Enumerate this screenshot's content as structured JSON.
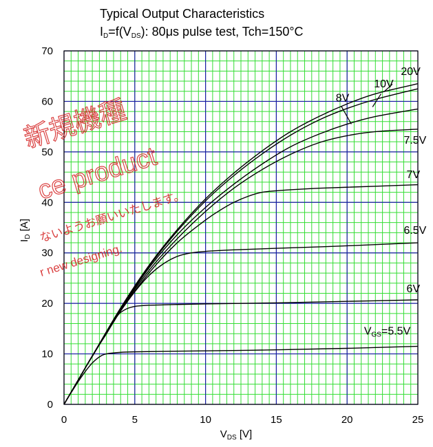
{
  "chart_data": {
    "type": "line",
    "title": "Typical Output Characteristics",
    "subtitle": {
      "prefix": "I",
      "prefix_sub": "D",
      "mid": "=f(V",
      "mid_sub": "DS",
      "rest": "): 80μs pulse test, Tch=150°C"
    },
    "xlabel": {
      "main": "V",
      "sub": "DS",
      "unit": " [V]"
    },
    "ylabel": {
      "main": "I",
      "sub": "D",
      "unit": " [A]"
    },
    "xlim": [
      0,
      25
    ],
    "ylim": [
      0,
      70
    ],
    "xticks": [
      "0",
      "5",
      "10",
      "15",
      "20",
      "25"
    ],
    "yticks": [
      "0",
      "10",
      "20",
      "30",
      "40",
      "50",
      "60",
      "70"
    ],
    "grid": {
      "minor": true,
      "major": true,
      "minor_color": "#33dd33",
      "major_color": "#1a1aa6"
    },
    "series": [
      {
        "name": "VGS=5.5V",
        "label_parts": {
          "main": "V",
          "sub": "GS",
          "rest": "=5.5V"
        },
        "x": [
          0,
          0.5,
          1,
          1.5,
          2,
          2.5,
          3,
          4,
          5,
          7,
          10,
          15,
          20,
          25
        ],
        "y": [
          0,
          2.3,
          4.5,
          6.5,
          8.2,
          9.4,
          10.0,
          10.3,
          10.4,
          10.5,
          10.6,
          10.8,
          11.1,
          11.5
        ]
      },
      {
        "name": "6V",
        "x": [
          0,
          0.5,
          1,
          1.5,
          2,
          2.5,
          3,
          3.5,
          4,
          5,
          7,
          10,
          15,
          20,
          25
        ],
        "y": [
          0,
          2.4,
          4.8,
          7.2,
          9.5,
          11.8,
          14.0,
          16.3,
          18.2,
          19.4,
          19.7,
          19.9,
          20.1,
          20.4,
          20.7
        ]
      },
      {
        "name": "6.5V",
        "x": [
          0,
          1,
          2,
          3,
          4,
          5,
          6,
          7,
          8,
          9,
          10,
          12,
          15,
          20,
          25
        ],
        "y": [
          0,
          4.8,
          9.6,
          14.2,
          18.5,
          22.3,
          25.5,
          27.8,
          29.3,
          30.0,
          30.3,
          30.6,
          30.9,
          31.4,
          32.0
        ]
      },
      {
        "name": "7V",
        "x": [
          0,
          1,
          2,
          4,
          6,
          8,
          10,
          11,
          12,
          13,
          14,
          15,
          16,
          18,
          20,
          25
        ],
        "y": [
          0,
          4.8,
          9.6,
          18.5,
          26.0,
          32.0,
          36.5,
          38.4,
          40.0,
          41.2,
          42.0,
          42.3,
          42.5,
          42.8,
          43.0,
          43.5
        ]
      },
      {
        "name": "7.5V",
        "x": [
          0,
          2,
          4,
          6,
          8,
          10,
          12,
          14,
          16,
          18,
          20,
          22,
          25
        ],
        "y": [
          0,
          9.6,
          18.7,
          26.5,
          32.8,
          38.2,
          42.8,
          46.5,
          49.5,
          51.8,
          53.2,
          54.0,
          54.5
        ]
      },
      {
        "name": "8V",
        "x": [
          0,
          2,
          4,
          6,
          8,
          10,
          12,
          14,
          16,
          18,
          20,
          22,
          25
        ],
        "y": [
          0,
          9.6,
          18.8,
          27.0,
          33.6,
          39.0,
          43.6,
          47.6,
          51.0,
          53.5,
          55.5,
          57.0,
          58.5
        ]
      },
      {
        "name": "10V",
        "x": [
          0,
          2,
          4,
          6,
          8,
          10,
          12,
          14,
          16,
          18,
          20,
          22,
          25
        ],
        "y": [
          0,
          9.6,
          19.0,
          27.3,
          34.3,
          40.3,
          45.3,
          49.6,
          53.3,
          56.3,
          58.6,
          60.4,
          62.5
        ]
      },
      {
        "name": "20V",
        "x": [
          0,
          2,
          4,
          6,
          8,
          10,
          12,
          14,
          16,
          18,
          20,
          22,
          25
        ],
        "y": [
          0,
          9.6,
          19.1,
          27.5,
          34.6,
          40.7,
          45.8,
          50.2,
          54.0,
          57.0,
          59.5,
          61.5,
          63.5
        ]
      }
    ],
    "curve_labels": [
      {
        "series": "20V",
        "text": "20V",
        "x": 23.8,
        "y": 65.2
      },
      {
        "series": "10V",
        "text": "10V",
        "x": 21.9,
        "y": 62.8
      },
      {
        "series": "8V",
        "text": "8V",
        "x": 19.2,
        "y": 60.0
      },
      {
        "series": "7.5V",
        "text": "7.5V",
        "x": 24.0,
        "y": 51.6
      },
      {
        "series": "7V",
        "text": "7V",
        "x": 24.2,
        "y": 44.8
      },
      {
        "series": "6.5V",
        "text": "6.5V",
        "x": 24.0,
        "y": 33.8
      },
      {
        "series": "6V",
        "text": "6V",
        "x": 24.2,
        "y": 22.2
      },
      {
        "series": "VGS=5.5V",
        "text": "VGS=5.5V",
        "x": 21.2,
        "y": 13.8
      }
    ],
    "leaders": [
      {
        "from": [
          22.4,
          61.5
        ],
        "to": [
          21.8,
          58.9
        ]
      },
      {
        "from": [
          19.6,
          59.0
        ],
        "to": [
          20.3,
          55.5
        ]
      },
      {
        "from": [
          23.2,
          63.4
        ],
        "to": [
          22.6,
          61.9
        ]
      }
    ]
  },
  "watermark": {
    "kanji": "新規機種",
    "english_1": "ce product",
    "japanese": "ないようお願いいたします。",
    "english_2": "r new designing."
  }
}
